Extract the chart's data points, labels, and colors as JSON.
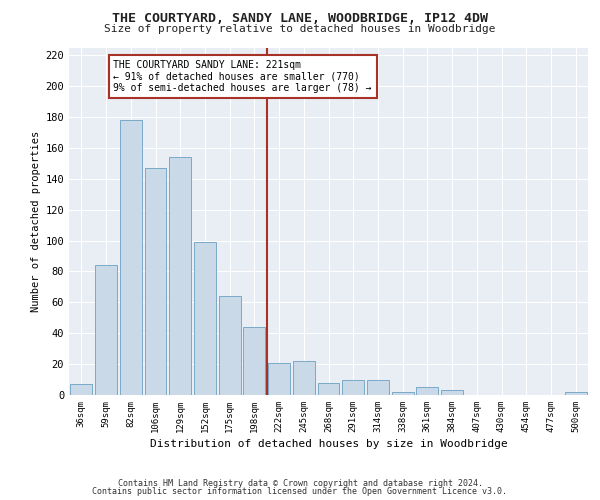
{
  "title_line1": "THE COURTYARD, SANDY LANE, WOODBRIDGE, IP12 4DW",
  "title_line2": "Size of property relative to detached houses in Woodbridge",
  "xlabel": "Distribution of detached houses by size in Woodbridge",
  "ylabel": "Number of detached properties",
  "categories": [
    "36sqm",
    "59sqm",
    "82sqm",
    "106sqm",
    "129sqm",
    "152sqm",
    "175sqm",
    "198sqm",
    "222sqm",
    "245sqm",
    "268sqm",
    "291sqm",
    "314sqm",
    "338sqm",
    "361sqm",
    "384sqm",
    "407sqm",
    "430sqm",
    "454sqm",
    "477sqm",
    "500sqm"
  ],
  "values": [
    7,
    84,
    178,
    147,
    154,
    99,
    64,
    44,
    21,
    22,
    8,
    10,
    10,
    2,
    5,
    3,
    0,
    0,
    0,
    0,
    2
  ],
  "bar_color": "#c9d9e8",
  "bar_edge_color": "#7aaac8",
  "background_color": "#e8eef4",
  "grid_color": "#ffffff",
  "vline_color": "#a93226",
  "annotation_text": "THE COURTYARD SANDY LANE: 221sqm\n← 91% of detached houses are smaller (770)\n9% of semi-detached houses are larger (78) →",
  "annotation_box_color": "#ffffff",
  "annotation_box_edge": "#a93226",
  "ylim": [
    0,
    225
  ],
  "yticks": [
    0,
    20,
    40,
    60,
    80,
    100,
    120,
    140,
    160,
    180,
    200,
    220
  ],
  "footnote1": "Contains HM Land Registry data © Crown copyright and database right 2024.",
  "footnote2": "Contains public sector information licensed under the Open Government Licence v3.0."
}
